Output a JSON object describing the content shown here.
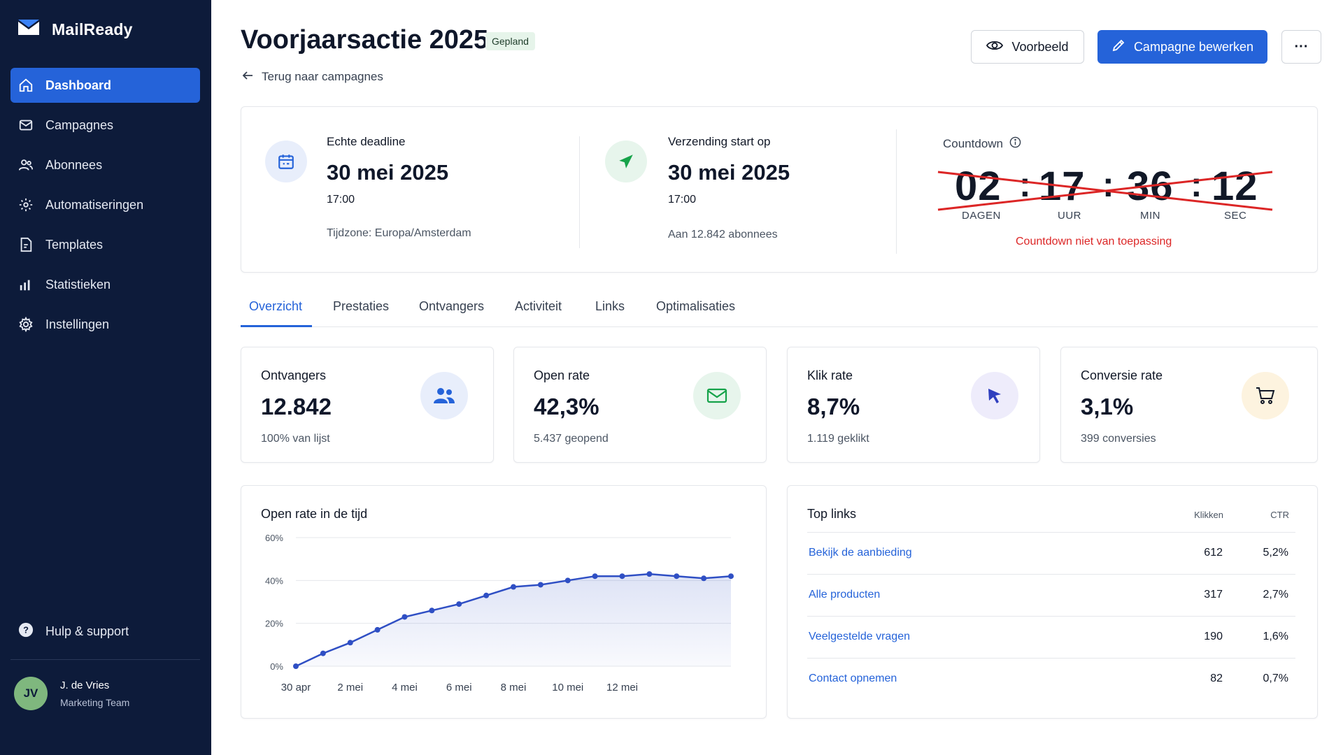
{
  "app": {
    "name": "MailReady"
  },
  "sidebar": {
    "items": [
      {
        "label": "Dashboard",
        "icon": "home-icon",
        "active": true
      },
      {
        "label": "Campagnes",
        "icon": "mail-icon",
        "active": false
      },
      {
        "label": "Abonnees",
        "icon": "users-icon",
        "active": false
      },
      {
        "label": "Automatiseringen",
        "icon": "automation-icon",
        "active": false
      },
      {
        "label": "Templates",
        "icon": "template-icon",
        "active": false
      },
      {
        "label": "Statistieken",
        "icon": "bar-chart-icon",
        "active": false
      },
      {
        "label": "Instellingen",
        "icon": "gear-icon",
        "active": false
      }
    ],
    "help_label": "Hulp & support",
    "user": {
      "initials": "JV",
      "name": "J. de Vries",
      "role": "Marketing Team"
    }
  },
  "header": {
    "title": "Voorjaarsactie 2025",
    "status_badge": "Gepland",
    "back_label": "Terug naar campagnes",
    "preview_label": "Voorbeeld",
    "edit_label": "Campagne bewerken",
    "more_label": "···"
  },
  "deadline": {
    "label": "Echte deadline",
    "date": "30 mei 2025",
    "time": "17:00",
    "timezone": "Tijdzone: Europa/Amsterdam"
  },
  "sending": {
    "label": "Verzending start op",
    "date": "30 mei 2025",
    "time": "17:00",
    "audience": "Aan 12.842 abonnees"
  },
  "countdown": {
    "label": "Countdown",
    "days": "02",
    "hours": "17",
    "minutes": "36",
    "seconds": "12",
    "units": {
      "days": "DAGEN",
      "hours": "UUR",
      "minutes": "MIN",
      "seconds": "SEC"
    },
    "separator": ":",
    "note": "Countdown niet van toepassing",
    "strike_color": "#dc2626"
  },
  "tabs": [
    "Overzicht",
    "Prestaties",
    "Ontvangers",
    "Activiteit",
    "Links",
    "Optimalisaties"
  ],
  "stats": [
    {
      "label": "Ontvangers",
      "value": "12.842",
      "sub": "100% van lijst",
      "icon": "users-icon",
      "icon_bg": "#e8eefb",
      "icon_color": "#2563d9"
    },
    {
      "label": "Open rate",
      "value": "42,3%",
      "sub": "5.437 geopend",
      "icon": "mail-icon",
      "icon_bg": "#e7f5ec",
      "icon_color": "#16a34a"
    },
    {
      "label": "Klik rate",
      "value": "8,7%",
      "sub": "1.119 geklikt",
      "icon": "cursor-icon",
      "icon_bg": "#eeecfb",
      "icon_color": "#2f3fbf"
    },
    {
      "label": "Conversie rate",
      "value": "3,1%",
      "sub": "399 conversies",
      "icon": "cart-icon",
      "icon_bg": "#fdf3df",
      "icon_color": "#111827"
    }
  ],
  "chart_data": {
    "type": "area",
    "title": "Open rate in de tijd",
    "x": [
      "30 apr",
      "1 mei",
      "2 mei",
      "3 mei",
      "4 mei",
      "5 mei",
      "6 mei",
      "7 mei",
      "8 mei",
      "9 mei",
      "10 mei",
      "11 mei",
      "12 mei",
      "13 mei",
      "14 mei",
      "15 mei",
      "16 mei"
    ],
    "x_tick_labels": [
      "30 apr",
      "2 mei",
      "4 mei",
      "6 mei",
      "8 mei",
      "10 mei",
      "12 mei"
    ],
    "y_tick_labels": [
      "60%",
      "40%",
      "20%",
      "0%"
    ],
    "series": [
      {
        "values": [
          0,
          6,
          11,
          17,
          23,
          26,
          29,
          33,
          37,
          38,
          40,
          42,
          42,
          43,
          42,
          41,
          42
        ],
        "color": "#2f4fc4"
      }
    ],
    "ylim": [
      0,
      60
    ],
    "grid": true
  },
  "top_links": {
    "title": "Top links",
    "col_clicks": "Klikken",
    "col_ctr": "CTR",
    "rows": [
      {
        "label": "Bekijk de aanbieding",
        "clicks": "612",
        "ctr": "5,2%"
      },
      {
        "label": "Alle producten",
        "clicks": "317",
        "ctr": "2,7%"
      },
      {
        "label": "Veelgestelde vragen",
        "clicks": "190",
        "ctr": "1,6%"
      },
      {
        "label": "Contact opnemen",
        "clicks": "82",
        "ctr": "0,7%"
      }
    ]
  }
}
